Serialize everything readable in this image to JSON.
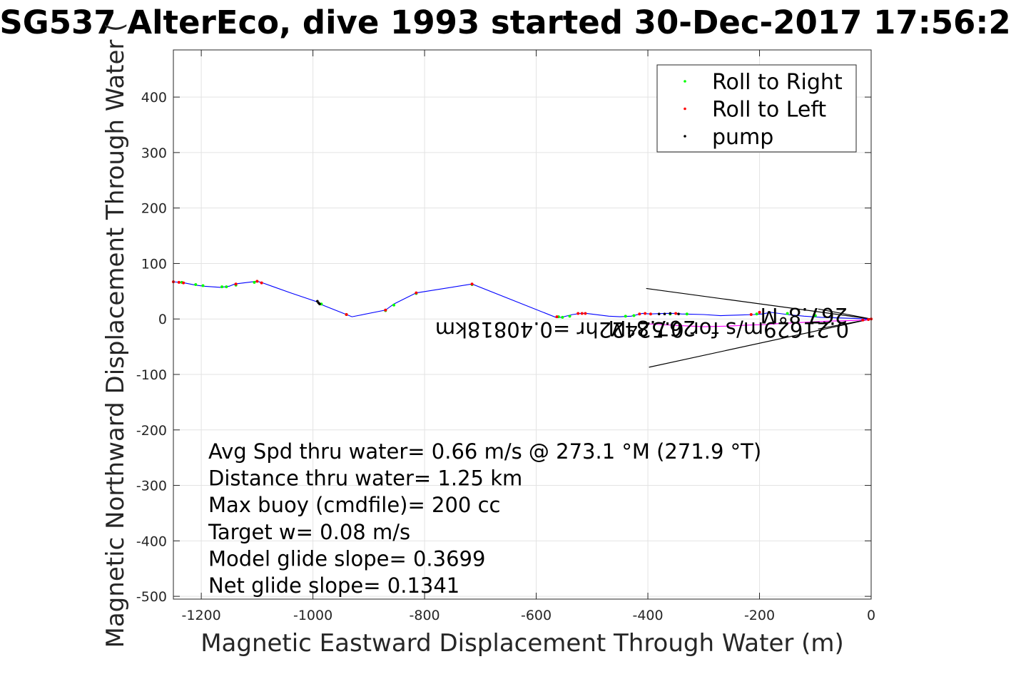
{
  "chart_data": {
    "type": "line",
    "title": "SG537 AlterEco, dive 1993 started 30-Dec-2017 17:56:2",
    "xlabel": "Magnetic Eastward Displacement Through Water (m)",
    "ylabel": "Magnetic Northward Displacement Through Water (",
    "xlim": [
      -1250,
      0
    ],
    "ylim": [
      -505,
      485
    ],
    "xticks": [
      -1200,
      -1000,
      -800,
      -600,
      -400,
      -200,
      0
    ],
    "yticks": [
      -500,
      -400,
      -300,
      -200,
      -100,
      0,
      100,
      200,
      300,
      400
    ],
    "grid": true,
    "legend_position": "top-right",
    "legend": [
      {
        "name": "Roll to Right",
        "color": "#00ff00"
      },
      {
        "name": "Roll to Left",
        "color": "#ff0000"
      },
      {
        "name": "pump",
        "color": "#000000"
      }
    ],
    "track": {
      "color": "#0000ff",
      "x": [
        -1250,
        -1237,
        -1230,
        -1210,
        -1195,
        -1165,
        -1150,
        -1140,
        -1100,
        -1090,
        -1040,
        -990,
        -985,
        -940,
        -930,
        -870,
        -855,
        -815,
        -715,
        -565,
        -555,
        -535,
        -520,
        -510,
        -470,
        -450,
        -430,
        -410,
        -395,
        -370,
        -350,
        -340,
        -300,
        -270,
        -240,
        -210,
        -195,
        -180,
        -150,
        -120,
        -90,
        -60,
        -30,
        -10,
        0
      ],
      "y": [
        67,
        66,
        65,
        61,
        59,
        57,
        59,
        63,
        68,
        65,
        47,
        30,
        26,
        8,
        4,
        16,
        27,
        47,
        63,
        3,
        3,
        8,
        10,
        10,
        5,
        4,
        5,
        10,
        9,
        10,
        10,
        9,
        8,
        6,
        7,
        8,
        9,
        12,
        8,
        5,
        3,
        2,
        1,
        0,
        0
      ]
    },
    "track_lower": {
      "color": "#ff00ff",
      "x": [
        -410,
        -380,
        -340,
        -300,
        -260,
        -220,
        -190,
        -160,
        -120,
        -80,
        -40,
        -10,
        0
      ],
      "y": [
        -8,
        -10,
        -12,
        -14,
        -13,
        -11,
        -10,
        -8,
        -6,
        -4,
        -3,
        -2,
        0
      ]
    },
    "roll_right_points": {
      "x": [
        -1235,
        -1210,
        -1197,
        -1163,
        -1155,
        -1138,
        -1105,
        -985,
        -940,
        -870,
        -855,
        -815,
        -715,
        -560,
        -553,
        -540,
        -440,
        -425,
        -360,
        -330,
        -205,
        -150,
        -100
      ],
      "y": [
        66,
        62,
        60,
        58,
        58,
        61,
        66,
        27,
        8,
        15,
        25,
        46,
        62,
        4,
        3,
        5,
        5,
        6,
        9,
        9,
        9,
        10,
        6
      ]
    },
    "roll_left_points": {
      "x": [
        -1250,
        -1240,
        -1232,
        -1138,
        -1100,
        -1092,
        -940,
        -870,
        -815,
        -715,
        -563,
        -525,
        -518,
        -512,
        -415,
        -405,
        -395,
        -350,
        -215,
        -200,
        -15,
        -5,
        0
      ],
      "y": [
        67,
        66,
        65,
        63,
        68,
        65,
        8,
        16,
        47,
        63,
        4,
        10,
        10,
        10,
        9,
        10,
        9,
        10,
        8,
        12,
        -2,
        -1,
        0
      ]
    },
    "pump_points": {
      "x": [
        -992,
        -990,
        -988,
        -380,
        -370,
        -360,
        -345
      ],
      "y": [
        32,
        29,
        27,
        9,
        9,
        10,
        9
      ]
    },
    "cone": {
      "apex": [
        0,
        0
      ],
      "upper_end": [
        -403,
        55
      ],
      "lower_end": [
        -398,
        -87
      ],
      "inner_upper_end": [
        -95,
        18
      ],
      "inner_lower_end": [
        -95,
        -18
      ]
    },
    "flipped_labels": [
      "267.8°M",
      "0.21629m/s for 0.52422hr =0.40818km",
      "267.8°M"
    ],
    "annotations": [
      "Avg Spd thru water=  0.66 m/s @ 273.1 °M (271.9 °T)",
      "Distance thru water=  1.25 km",
      "Max buoy (cmdfile)= 200 cc",
      "Target w= 0.08 m/s",
      "Model glide slope= 0.3699",
      "Net glide slope= 0.1341"
    ]
  }
}
